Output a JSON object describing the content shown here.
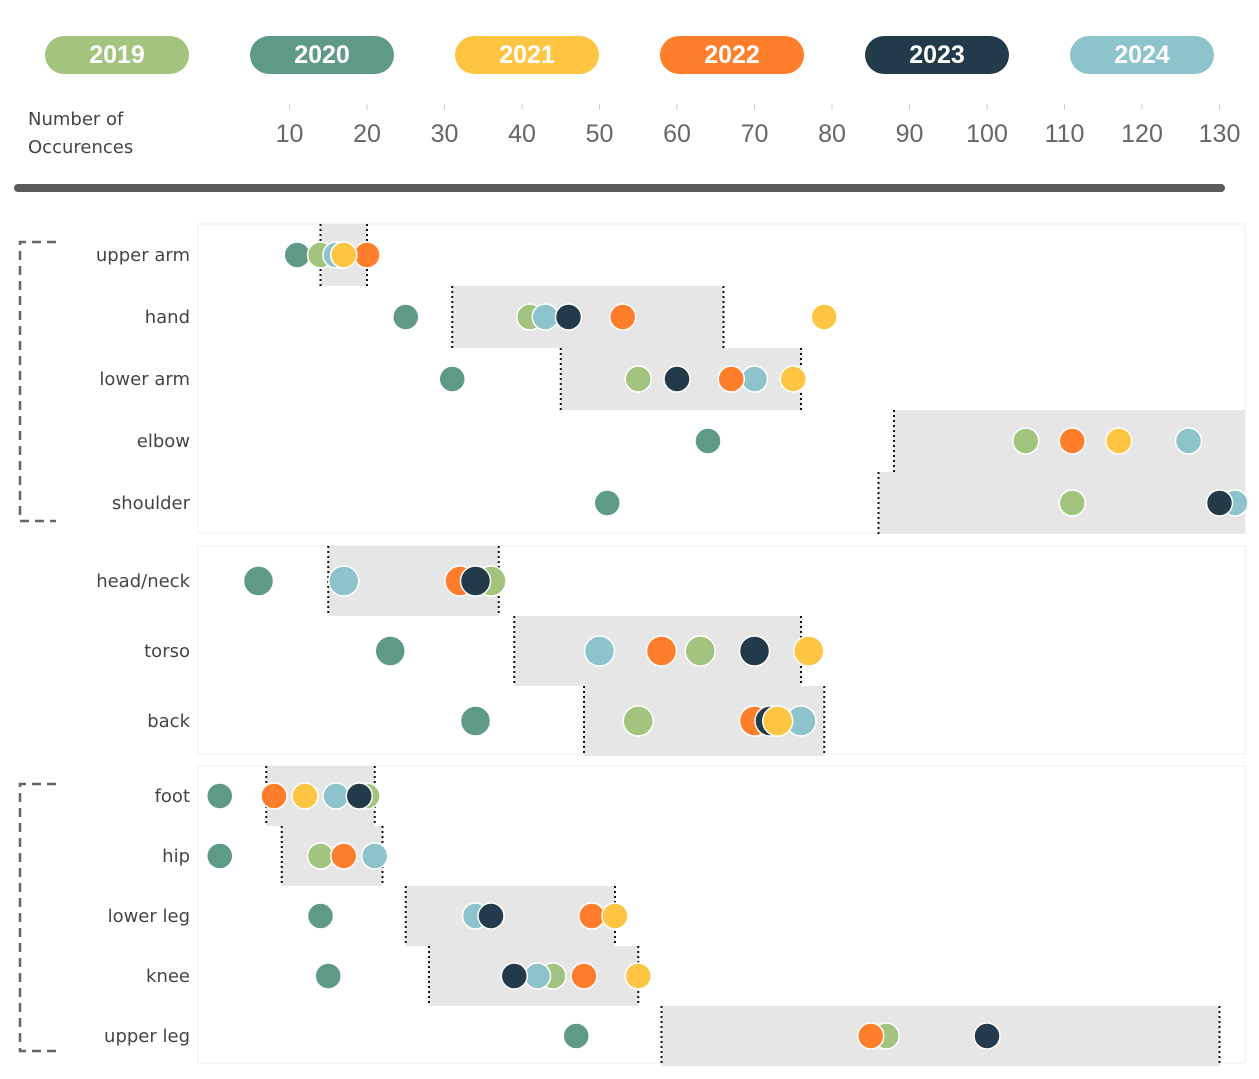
{
  "axis_title": "Number of Occurences",
  "colors": {
    "2019": "#a2c47e",
    "2020": "#5e9a85",
    "2021": "#fec543",
    "2022": "#fe7e2b",
    "2023": "#233a4b",
    "2024": "#8dc3cb"
  },
  "chart_data": {
    "type": "scatter",
    "title": "",
    "xlabel": "Number of Occurences",
    "ylabel": "",
    "xlim": [
      0,
      135
    ],
    "xticks": [
      10,
      20,
      30,
      40,
      50,
      60,
      70,
      80,
      90,
      100,
      110,
      120,
      130
    ],
    "legend_position": "top",
    "series_names": [
      "2019",
      "2020",
      "2021",
      "2022",
      "2023",
      "2024"
    ],
    "groups": [
      {
        "bracket": true,
        "rows": [
          {
            "label": "upper arm",
            "range": [
              14,
              20
            ],
            "values": {
              "2020": 11,
              "2019": 14,
              "2024": 16,
              "2021": 17,
              "2023": 17,
              "2022": 20
            }
          },
          {
            "label": "hand",
            "range": [
              31,
              66
            ],
            "values": {
              "2020": 25,
              "2019": 41,
              "2024": 43,
              "2023": 46,
              "2022": 53,
              "2021": 79
            }
          },
          {
            "label": "lower arm",
            "range": [
              45,
              76
            ],
            "values": {
              "2020": 31,
              "2019": 55,
              "2023": 60,
              "2022": 67,
              "2024": 70,
              "2021": 75
            }
          },
          {
            "label": "elbow",
            "range": [
              88,
              140
            ],
            "values": {
              "2020": 64,
              "2019": 105,
              "2022": 111,
              "2021": 117,
              "2024": 126
            }
          },
          {
            "label": "shoulder",
            "range": [
              86,
              140
            ],
            "values": {
              "2020": 51,
              "2019": 111,
              "2023": 130,
              "2024": 132
            }
          }
        ]
      },
      {
        "bracket": false,
        "rows": [
          {
            "label": "head/neck",
            "range": [
              15,
              37
            ],
            "values": {
              "2020": 6,
              "2024": 17,
              "2022": 32,
              "2023": 34,
              "2019": 36
            }
          },
          {
            "label": "torso",
            "range": [
              39,
              76
            ],
            "values": {
              "2020": 23,
              "2024": 50,
              "2022": 58,
              "2019": 63,
              "2023": 70,
              "2021": 77
            }
          },
          {
            "label": "back",
            "range": [
              48,
              79
            ],
            "values": {
              "2020": 34,
              "2019": 55,
              "2022": 70,
              "2023": 72,
              "2021": 73,
              "2024": 76
            }
          }
        ]
      },
      {
        "bracket": true,
        "rows": [
          {
            "label": "foot",
            "range": [
              7,
              21
            ],
            "values": {
              "2020": 1,
              "2022": 8,
              "2021": 12,
              "2024": 16,
              "2023": 19,
              "2019": 20
            }
          },
          {
            "label": "hip",
            "range": [
              9,
              22
            ],
            "values": {
              "2020": 1,
              "2019": 14,
              "2022": 17,
              "2024": 21
            }
          },
          {
            "label": "lower leg",
            "range": [
              25,
              52
            ],
            "values": {
              "2020": 14,
              "2024": 34,
              "2023": 36,
              "2019": 36,
              "2022": 49,
              "2021": 52
            }
          },
          {
            "label": "knee",
            "range": [
              28,
              55
            ],
            "values": {
              "2020": 15,
              "2023": 39,
              "2024": 42,
              "2019": 44,
              "2022": 48,
              "2021": 55
            }
          },
          {
            "label": "upper leg",
            "range": [
              58,
              130
            ],
            "values": {
              "2020": 47,
              "2022": 85,
              "2019": 87,
              "2023": 100
            }
          }
        ]
      }
    ]
  }
}
